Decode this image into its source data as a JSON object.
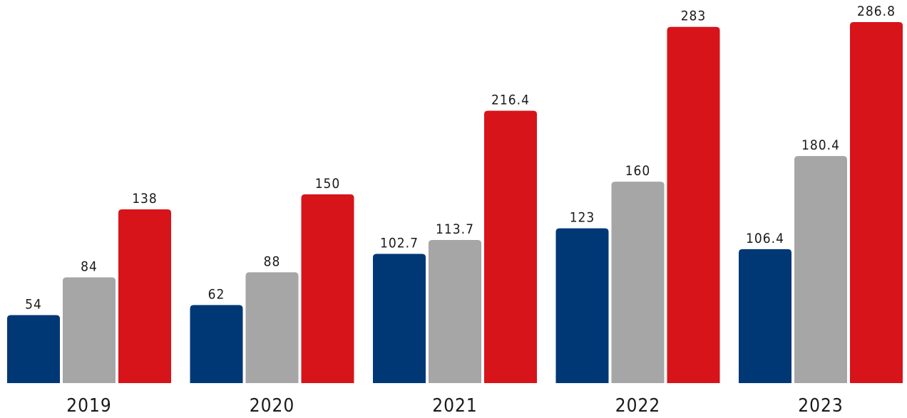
{
  "chart_data": {
    "type": "bar",
    "categories": [
      "2019",
      "2020",
      "2021",
      "2022",
      "2023"
    ],
    "series": [
      {
        "color": "#003876",
        "values": [
          54,
          62,
          102.7,
          123,
          106.4
        ]
      },
      {
        "color": "#a6a6a6",
        "values": [
          84,
          88,
          113.7,
          160,
          180.4
        ]
      },
      {
        "color": "#d7141a",
        "values": [
          138,
          150,
          216.4,
          283,
          286.8
        ]
      }
    ],
    "value_labels": [
      [
        "54",
        "62",
        "102.7",
        "123",
        "106.4"
      ],
      [
        "84",
        "88",
        "113.7",
        "160",
        "180.4"
      ],
      [
        "138",
        "150",
        "216.4",
        "283",
        "286.8"
      ]
    ],
    "title": "",
    "xlabel": "",
    "ylabel": "",
    "ylim": [
      0,
      286.8
    ],
    "grid": false,
    "legend": "none"
  }
}
